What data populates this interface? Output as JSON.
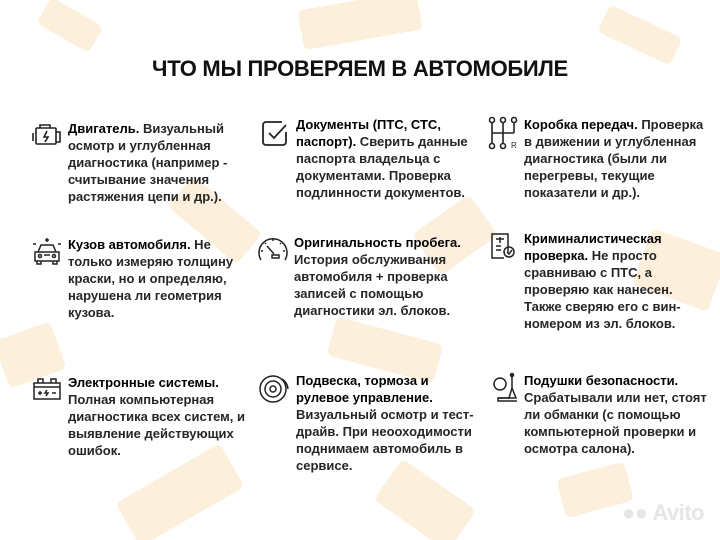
{
  "title": "ЧТО МЫ ПРОВЕРЯЕМ В АВТОМОБИЛЕ",
  "items": [
    {
      "icon": "engine-icon",
      "heading": "Двигатель.",
      "body": " Визуальный осмотр и углубленная диагностика (например - считывание значения растяжения цепи и др.)."
    },
    {
      "icon": "checkbox-icon",
      "heading": "Документы (ПТС, СТС, паспорт).",
      "body": " Сверить данные паспорта владельца с документами. Проверка подлинности документов."
    },
    {
      "icon": "gearbox-icon",
      "heading": "Коробка передач.",
      "body": " Проверка в движении и углубленная диагностика (были ли перегревы, текущие показатели и др.)."
    },
    {
      "icon": "car-body-icon",
      "heading": "Кузов автомобиля.",
      "body": " Не только измеряю толщину краски, но и определяю, нарушена ли геометрия кузова."
    },
    {
      "icon": "speedometer-icon",
      "heading": "Оригинальность пробега.",
      "body": " История обслуживания автомобиля + проверка записей с помощью диагностики эл. блоков."
    },
    {
      "icon": "forensic-document-icon",
      "heading": "Криминалистическая проверка.",
      "body": " Не просто сравниваю с ПТС, а проверяю как нанесен. Также сверяю его с вин-номером из эл. блоков."
    },
    {
      "icon": "battery-icon",
      "heading": "Электронные системы.",
      "body": " Полная компьютерная диагностика всех систем, и выявление действующих ошибок."
    },
    {
      "icon": "brake-disc-icon",
      "heading": "Подвеска, тормоза и рулевое управление.",
      "body": " Визуальный осмотр и тест-драйв. При неооходимости поднимаем автомобиль в сервисе."
    },
    {
      "icon": "airbag-seat-icon",
      "heading": "Подушки безопасности.",
      "body": " Срабатывали или нет, стоят ли обманки (с помощью компьютерной проверки и осмотра салона)."
    }
  ],
  "logo": "Avito",
  "colors": {
    "background_pattern": "#fcefdc",
    "text": "#1a1a1a"
  }
}
